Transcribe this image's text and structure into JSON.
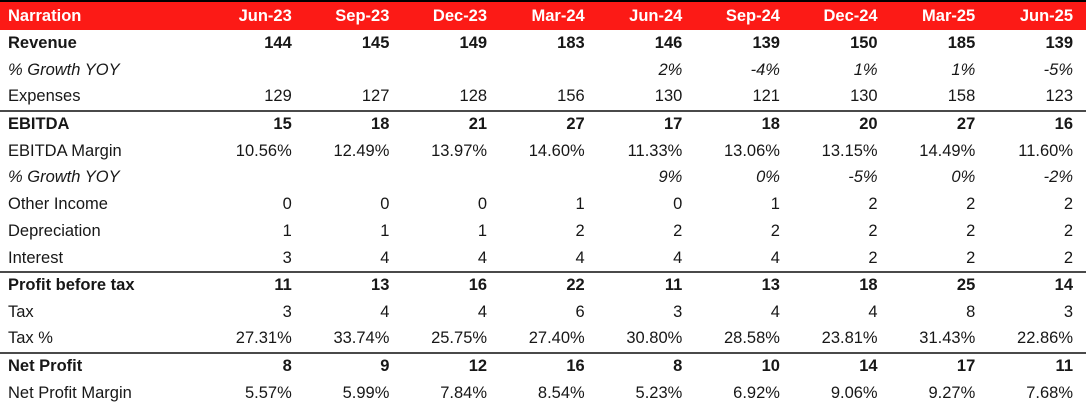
{
  "chart_data": {
    "type": "table",
    "columns": [
      "Narration",
      "Jun-23",
      "Sep-23",
      "Dec-23",
      "Mar-24",
      "Jun-24",
      "Sep-24",
      "Dec-24",
      "Mar-25",
      "Jun-25"
    ],
    "rows": [
      {
        "label": "Revenue",
        "emphasis": "bold",
        "separator_above": false,
        "values": [
          "144",
          "145",
          "149",
          "183",
          "146",
          "139",
          "150",
          "185",
          "139"
        ]
      },
      {
        "label": "% Growth YOY",
        "emphasis": "italic",
        "separator_above": false,
        "values": [
          "",
          "",
          "",
          "",
          "2%",
          "-4%",
          "1%",
          "1%",
          "-5%"
        ]
      },
      {
        "label": "Expenses",
        "emphasis": "regular",
        "separator_above": false,
        "values": [
          "129",
          "127",
          "128",
          "156",
          "130",
          "121",
          "130",
          "158",
          "123"
        ]
      },
      {
        "label": "EBITDA",
        "emphasis": "bold",
        "separator_above": true,
        "values": [
          "15",
          "18",
          "21",
          "27",
          "17",
          "18",
          "20",
          "27",
          "16"
        ]
      },
      {
        "label": "EBITDA Margin",
        "emphasis": "regular",
        "separator_above": false,
        "values": [
          "10.56%",
          "12.49%",
          "13.97%",
          "14.60%",
          "11.33%",
          "13.06%",
          "13.15%",
          "14.49%",
          "11.60%"
        ]
      },
      {
        "label": "% Growth YOY",
        "emphasis": "italic",
        "separator_above": false,
        "values": [
          "",
          "",
          "",
          "",
          "9%",
          "0%",
          "-5%",
          "0%",
          "-2%"
        ]
      },
      {
        "label": "Other Income",
        "emphasis": "regular",
        "separator_above": false,
        "values": [
          "0",
          "0",
          "0",
          "1",
          "0",
          "1",
          "2",
          "2",
          "2"
        ]
      },
      {
        "label": "Depreciation",
        "emphasis": "regular",
        "separator_above": false,
        "values": [
          "1",
          "1",
          "1",
          "2",
          "2",
          "2",
          "2",
          "2",
          "2"
        ]
      },
      {
        "label": "Interest",
        "emphasis": "regular",
        "separator_above": false,
        "values": [
          "3",
          "4",
          "4",
          "4",
          "4",
          "4",
          "2",
          "2",
          "2"
        ]
      },
      {
        "label": "Profit before tax",
        "emphasis": "bold",
        "separator_above": true,
        "values": [
          "11",
          "13",
          "16",
          "22",
          "11",
          "13",
          "18",
          "25",
          "14"
        ]
      },
      {
        "label": "Tax",
        "emphasis": "regular",
        "separator_above": false,
        "values": [
          "3",
          "4",
          "4",
          "6",
          "3",
          "4",
          "4",
          "8",
          "3"
        ]
      },
      {
        "label": "Tax %",
        "emphasis": "regular",
        "separator_above": false,
        "values": [
          "27.31%",
          "33.74%",
          "25.75%",
          "27.40%",
          "30.80%",
          "28.58%",
          "23.81%",
          "31.43%",
          "22.86%"
        ]
      },
      {
        "label": "Net Profit",
        "emphasis": "bold",
        "separator_above": true,
        "values": [
          "8",
          "9",
          "12",
          "16",
          "8",
          "10",
          "14",
          "17",
          "11"
        ]
      },
      {
        "label": "Net Profit Margin",
        "emphasis": "regular",
        "separator_above": false,
        "values": [
          "5.57%",
          "5.99%",
          "7.84%",
          "8.54%",
          "5.23%",
          "6.92%",
          "9.06%",
          "9.27%",
          "7.68%"
        ]
      }
    ]
  },
  "colors": {
    "header_bg": "#fc1a16",
    "header_text": "#ffffff",
    "separator_line": "#4a4a4a",
    "table_top_border": "#000000",
    "body_text": "#171717"
  }
}
